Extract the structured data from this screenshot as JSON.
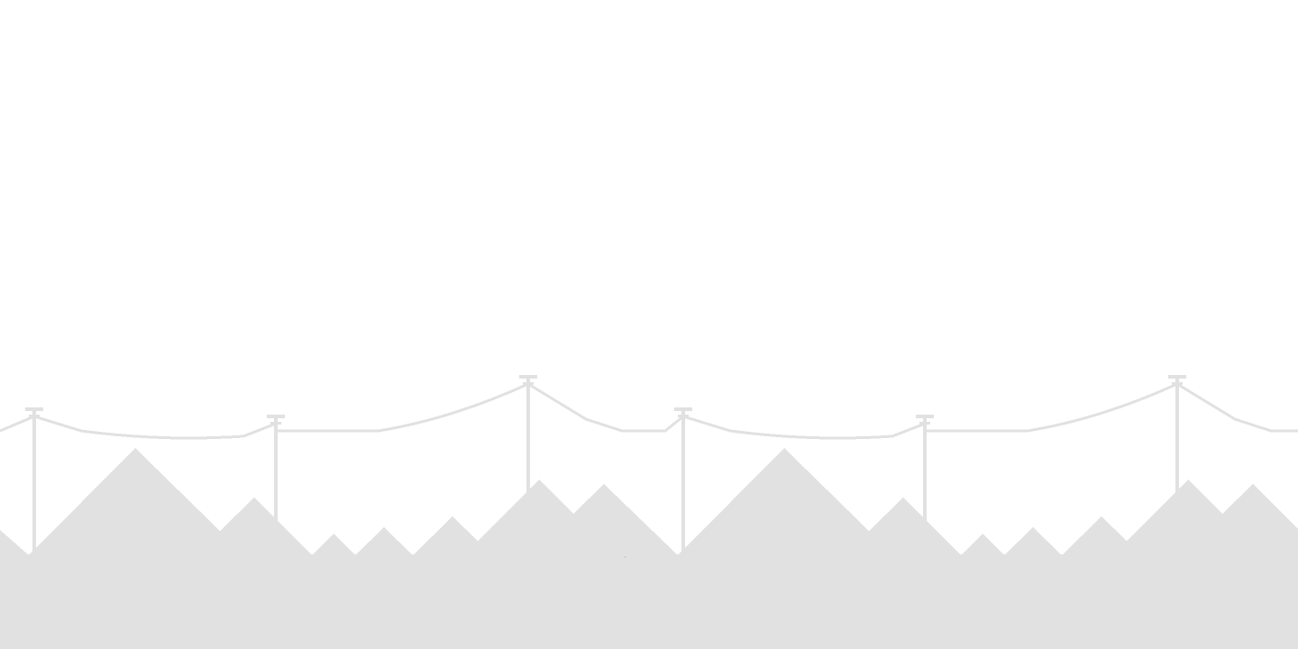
{
  "scene": {
    "background_color": "#ffffff",
    "scenery_color": "#e1e1e1",
    "elements": [
      "sky",
      "power-lines",
      "utility-poles",
      "mountain-range",
      "ground"
    ]
  }
}
